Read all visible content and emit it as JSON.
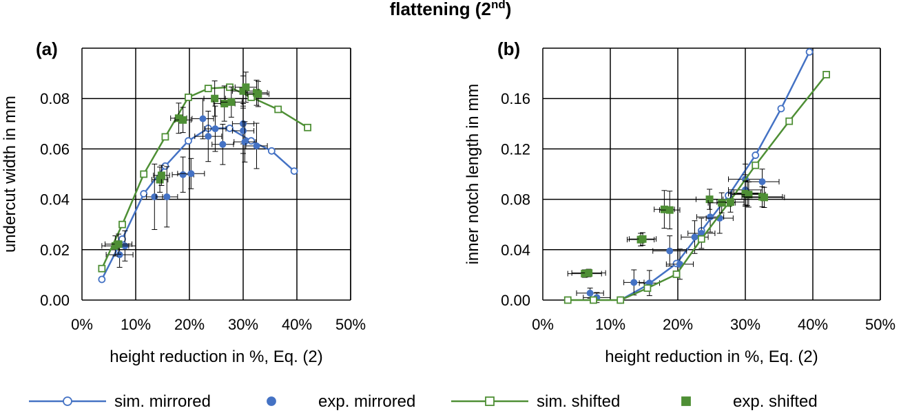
{
  "figure": {
    "title": "flattening (2",
    "title_superscript": "nd",
    "title_close": ")"
  },
  "colors": {
    "blue": "#4472C4",
    "green": "#4E8F35",
    "grid": "#000000",
    "errorbar": "#000000"
  },
  "legend": [
    {
      "name": "sim. mirrored",
      "color": "#4472C4",
      "line": true,
      "marker": "circle",
      "filled": false
    },
    {
      "name": "exp. mirrored",
      "color": "#4472C4",
      "line": false,
      "marker": "circle",
      "filled": true
    },
    {
      "name": "sim. shifted",
      "color": "#4E8F35",
      "line": true,
      "marker": "square",
      "filled": false
    },
    {
      "name": "exp. shifted",
      "color": "#4E8F35",
      "line": false,
      "marker": "square",
      "filled": true
    }
  ],
  "chart_data": [
    {
      "type": "scatter",
      "panel_label": "(a)",
      "xlabel": "height reduction in %, Eq. (2)",
      "ylabel": "undercut width in mm",
      "xlim": [
        0,
        50
      ],
      "ylim": [
        0,
        0.1
      ],
      "xticks": [
        0,
        10,
        20,
        30,
        40,
        50
      ],
      "yticks": [
        0,
        0.02,
        0.04,
        0.06,
        0.08
      ],
      "xtick_labels": [
        "0%",
        "10%",
        "20%",
        "30%",
        "40%",
        "50%"
      ],
      "ytick_labels": [
        "0.00",
        "0.02",
        "0.04",
        "0.06",
        "0.08"
      ],
      "grid": true,
      "series": [
        {
          "name": "sim. mirrored",
          "kind": "sim",
          "color": "#4472C4",
          "marker": "circle",
          "x": [
            3.7,
            7.5,
            11.5,
            15.5,
            19.8,
            23.5,
            27.5,
            31.5,
            35.3,
            39.5
          ],
          "y": [
            0.0082,
            0.0242,
            0.0422,
            0.0532,
            0.0632,
            0.0682,
            0.0682,
            0.0632,
            0.0592,
            0.0512
          ]
        },
        {
          "name": "exp. mirrored",
          "kind": "exp",
          "color": "#4472C4",
          "marker": "circle",
          "points": [
            {
              "x": 7.0,
              "y": 0.018,
              "xerr": 2.5,
              "yerr": 0.005
            },
            {
              "x": 8.0,
              "y": 0.0215,
              "xerr": 2.0,
              "yerr": 0.006
            },
            {
              "x": 13.5,
              "y": 0.041,
              "xerr": 1.5,
              "yerr": 0.013
            },
            {
              "x": 15.8,
              "y": 0.041,
              "xerr": 2.0,
              "yerr": 0.012
            },
            {
              "x": 18.8,
              "y": 0.0498,
              "xerr": 2.0,
              "yerr": 0.007
            },
            {
              "x": 20.3,
              "y": 0.0502,
              "xerr": 2.5,
              "yerr": 0.006
            },
            {
              "x": 22.5,
              "y": 0.072,
              "xerr": 2.0,
              "yerr": 0.008
            },
            {
              "x": 23.5,
              "y": 0.065,
              "xerr": 2.5,
              "yerr": 0.01
            },
            {
              "x": 24.8,
              "y": 0.068,
              "xerr": 2.0,
              "yerr": 0.009
            },
            {
              "x": 26.2,
              "y": 0.0618,
              "xerr": 2.0,
              "yerr": 0.008
            },
            {
              "x": 30.0,
              "y": 0.07,
              "xerr": 2.0,
              "yerr": 0.008
            },
            {
              "x": 30.0,
              "y": 0.0672,
              "xerr": 2.0,
              "yerr": 0.009
            },
            {
              "x": 30.3,
              "y": 0.0628,
              "xerr": 2.0,
              "yerr": 0.008
            },
            {
              "x": 32.5,
              "y": 0.0612,
              "xerr": 2.0,
              "yerr": 0.009
            }
          ]
        },
        {
          "name": "sim. shifted",
          "kind": "sim",
          "color": "#4E8F35",
          "marker": "square",
          "x": [
            3.7,
            7.5,
            11.5,
            15.5,
            19.8,
            23.5,
            27.5,
            31.5,
            36.5,
            42.0
          ],
          "y": [
            0.0125,
            0.03,
            0.05,
            0.0648,
            0.0805,
            0.084,
            0.0845,
            0.0805,
            0.0757,
            0.0685
          ]
        },
        {
          "name": "exp. shifted",
          "kind": "exp",
          "color": "#4E8F35",
          "marker": "square",
          "points": [
            {
              "x": 6.2,
              "y": 0.0215,
              "xerr": 2.5,
              "yerr": 0.004
            },
            {
              "x": 6.8,
              "y": 0.0222,
              "xerr": 2.5,
              "yerr": 0.004
            },
            {
              "x": 14.5,
              "y": 0.0478,
              "xerr": 1.5,
              "yerr": 0.005
            },
            {
              "x": 14.8,
              "y": 0.0495,
              "xerr": 1.5,
              "yerr": 0.004
            },
            {
              "x": 18.0,
              "y": 0.0722,
              "xerr": 1.5,
              "yerr": 0.006
            },
            {
              "x": 18.8,
              "y": 0.0715,
              "xerr": 1.5,
              "yerr": 0.005
            },
            {
              "x": 24.7,
              "y": 0.08,
              "xerr": 2.0,
              "yerr": 0.007
            },
            {
              "x": 26.5,
              "y": 0.078,
              "xerr": 2.0,
              "yerr": 0.007
            },
            {
              "x": 27.8,
              "y": 0.0786,
              "xerr": 2.0,
              "yerr": 0.006
            },
            {
              "x": 30.0,
              "y": 0.083,
              "xerr": 2.0,
              "yerr": 0.006
            },
            {
              "x": 30.5,
              "y": 0.0845,
              "xerr": 2.0,
              "yerr": 0.006
            },
            {
              "x": 32.5,
              "y": 0.0823,
              "xerr": 2.0,
              "yerr": 0.005
            },
            {
              "x": 32.8,
              "y": 0.0818,
              "xerr": 2.0,
              "yerr": 0.005
            }
          ]
        }
      ]
    },
    {
      "type": "scatter",
      "panel_label": "(b)",
      "xlabel": "height reduction in %, Eq. (2)",
      "ylabel": "inner notch length in mm",
      "xlim": [
        0,
        50
      ],
      "ylim": [
        0,
        0.2
      ],
      "xticks": [
        0,
        10,
        20,
        30,
        40,
        50
      ],
      "yticks": [
        0,
        0.04,
        0.08,
        0.12,
        0.16
      ],
      "xtick_labels": [
        "0%",
        "10%",
        "20%",
        "30%",
        "40%",
        "50%"
      ],
      "ytick_labels": [
        "0.00",
        "0.04",
        "0.08",
        "0.12",
        "0.16"
      ],
      "grid": true,
      "series": [
        {
          "name": "sim. mirrored",
          "kind": "sim",
          "color": "#4472C4",
          "marker": "circle",
          "x": [
            11.5,
            15.5,
            19.8,
            23.5,
            27.5,
            31.5,
            35.3,
            39.5
          ],
          "y": [
            0.0,
            0.012,
            0.029,
            0.055,
            0.083,
            0.115,
            0.152,
            0.197
          ]
        },
        {
          "name": "exp. mirrored",
          "kind": "exp",
          "color": "#4472C4",
          "marker": "circle",
          "points": [
            {
              "x": 7.0,
              "y": 0.0055,
              "xerr": 2.0,
              "yerr": 0.004
            },
            {
              "x": 8.0,
              "y": 0.002,
              "xerr": 2.0,
              "yerr": 0.004
            },
            {
              "x": 13.5,
              "y": 0.014,
              "xerr": 1.5,
              "yerr": 0.01
            },
            {
              "x": 15.8,
              "y": 0.0135,
              "xerr": 1.5,
              "yerr": 0.01
            },
            {
              "x": 18.8,
              "y": 0.039,
              "xerr": 2.5,
              "yerr": 0.012
            },
            {
              "x": 20.3,
              "y": 0.0285,
              "xerr": 2.0,
              "yerr": 0.012
            },
            {
              "x": 22.5,
              "y": 0.05,
              "xerr": 2.0,
              "yerr": 0.013
            },
            {
              "x": 23.5,
              "y": 0.053,
              "xerr": 2.0,
              "yerr": 0.012
            },
            {
              "x": 24.8,
              "y": 0.066,
              "xerr": 2.0,
              "yerr": 0.012
            },
            {
              "x": 26.2,
              "y": 0.065,
              "xerr": 2.0,
              "yerr": 0.012
            },
            {
              "x": 30.0,
              "y": 0.096,
              "xerr": 2.5,
              "yerr": 0.012
            },
            {
              "x": 30.0,
              "y": 0.0875,
              "xerr": 2.5,
              "yerr": 0.012
            },
            {
              "x": 30.3,
              "y": 0.085,
              "xerr": 2.0,
              "yerr": 0.01
            },
            {
              "x": 32.5,
              "y": 0.094,
              "xerr": 2.5,
              "yerr": 0.01
            }
          ]
        },
        {
          "name": "sim. shifted",
          "kind": "sim",
          "color": "#4E8F35",
          "marker": "square",
          "x": [
            3.7,
            7.5,
            11.5,
            15.5,
            19.8,
            23.5,
            27.5,
            31.5,
            36.5,
            42.0
          ],
          "y": [
            0.0,
            0.0,
            0.0,
            0.0095,
            0.0205,
            0.0485,
            0.077,
            0.107,
            0.142,
            0.179
          ]
        },
        {
          "name": "exp. shifted",
          "kind": "exp",
          "color": "#4E8F35",
          "marker": "square",
          "points": [
            {
              "x": 6.2,
              "y": 0.021,
              "xerr": 2.5,
              "yerr": 0.003
            },
            {
              "x": 6.8,
              "y": 0.0215,
              "xerr": 2.5,
              "yerr": 0.003
            },
            {
              "x": 14.5,
              "y": 0.048,
              "xerr": 2.0,
              "yerr": 0.005
            },
            {
              "x": 14.8,
              "y": 0.0485,
              "xerr": 2.0,
              "yerr": 0.005
            },
            {
              "x": 18.0,
              "y": 0.072,
              "xerr": 1.5,
              "yerr": 0.015
            },
            {
              "x": 18.8,
              "y": 0.0715,
              "xerr": 1.5,
              "yerr": 0.015
            },
            {
              "x": 24.7,
              "y": 0.08,
              "xerr": 2.0,
              "yerr": 0.008
            },
            {
              "x": 26.5,
              "y": 0.0772,
              "xerr": 2.0,
              "yerr": 0.008
            },
            {
              "x": 27.8,
              "y": 0.0778,
              "xerr": 2.0,
              "yerr": 0.008
            },
            {
              "x": 30.0,
              "y": 0.0845,
              "xerr": 2.5,
              "yerr": 0.01
            },
            {
              "x": 30.5,
              "y": 0.0838,
              "xerr": 2.5,
              "yerr": 0.01
            },
            {
              "x": 32.5,
              "y": 0.082,
              "xerr": 3.0,
              "yerr": 0.008
            },
            {
              "x": 32.8,
              "y": 0.0815,
              "xerr": 3.0,
              "yerr": 0.008
            }
          ]
        }
      ]
    }
  ]
}
